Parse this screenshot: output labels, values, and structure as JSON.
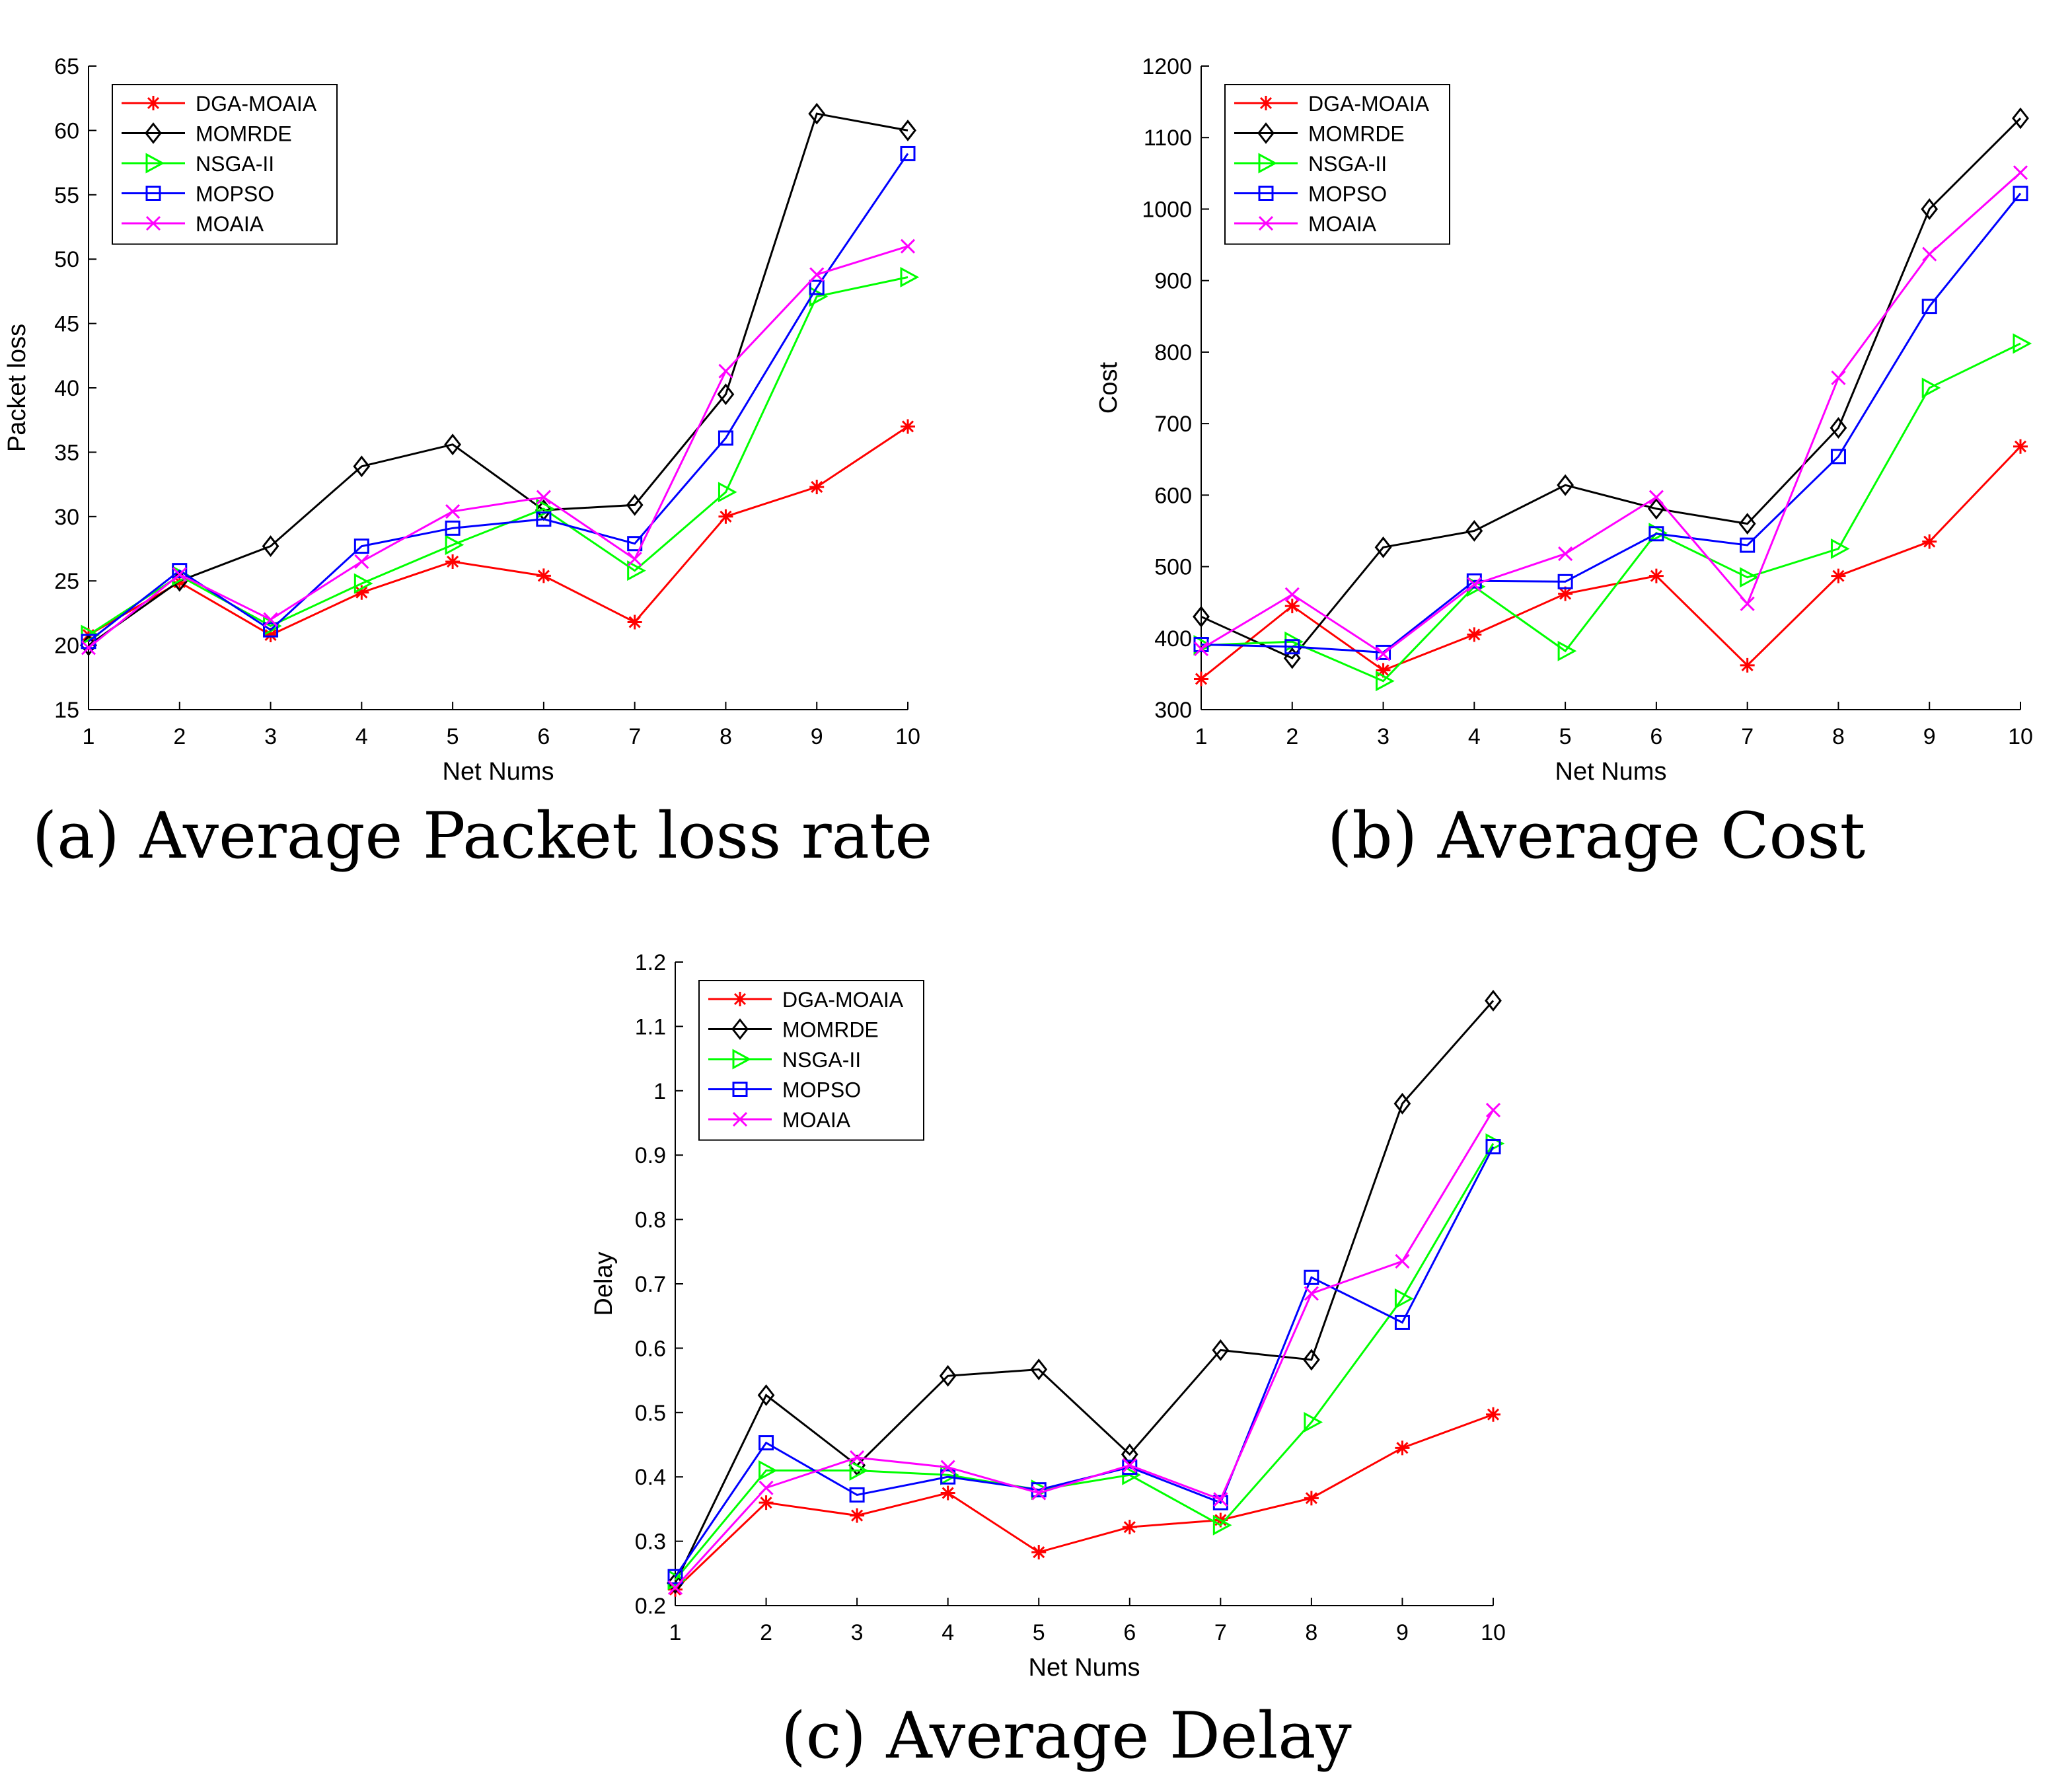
{
  "series_style": [
    {
      "name": "DGA-MOAIA",
      "color": "#ff0000",
      "marker": "asterisk"
    },
    {
      "name": "MOMRDE",
      "color": "#000000",
      "marker": "diamond"
    },
    {
      "name": "NSGA-II",
      "color": "#00ff00",
      "marker": "triangle-right"
    },
    {
      "name": "MOPSO",
      "color": "#0000ff",
      "marker": "square"
    },
    {
      "name": "MOAIA",
      "color": "#ff00ff",
      "marker": "x-cross"
    }
  ],
  "chart_data": [
    {
      "type": "line",
      "caption": "(a) Average Packet loss rate",
      "xlabel": "Net Nums",
      "ylabel": "Packet loss",
      "x": [
        1,
        2,
        3,
        4,
        5,
        6,
        7,
        8,
        9,
        10
      ],
      "xlim": [
        1,
        10
      ],
      "ylim": [
        15,
        65
      ],
      "xticks": [
        "1",
        "2",
        "3",
        "4",
        "5",
        "6",
        "7",
        "8",
        "9",
        "10"
      ],
      "yticks": [
        "15",
        "20",
        "25",
        "30",
        "35",
        "40",
        "45",
        "50",
        "55",
        "60",
        "65"
      ],
      "legend_position": "top-left",
      "series": [
        {
          "name": "DGA-MOAIA",
          "values": [
            20.8,
            24.9,
            20.8,
            24.1,
            26.5,
            25.4,
            21.8,
            30.0,
            32.3,
            37.0
          ]
        },
        {
          "name": "MOMRDE",
          "values": [
            20.0,
            25.0,
            27.7,
            33.9,
            35.6,
            30.5,
            30.9,
            39.5,
            61.3,
            60.0
          ]
        },
        {
          "name": "NSGA-II",
          "values": [
            20.8,
            25.4,
            21.5,
            24.8,
            27.8,
            30.6,
            25.8,
            31.9,
            47.1,
            48.6
          ]
        },
        {
          "name": "MOPSO",
          "values": [
            20.3,
            25.8,
            21.2,
            27.7,
            29.1,
            29.8,
            27.9,
            36.1,
            47.8,
            58.2
          ]
        },
        {
          "name": "MOAIA",
          "values": [
            19.8,
            25.5,
            22.0,
            26.5,
            30.4,
            31.5,
            26.7,
            41.3,
            48.8,
            51.0
          ]
        }
      ]
    },
    {
      "type": "line",
      "caption": "(b) Average Cost",
      "xlabel": "Net Nums",
      "ylabel": "Cost",
      "x": [
        1,
        2,
        3,
        4,
        5,
        6,
        7,
        8,
        9,
        10
      ],
      "xlim": [
        1,
        10
      ],
      "ylim": [
        300,
        1200
      ],
      "xticks": [
        "1",
        "2",
        "3",
        "4",
        "5",
        "6",
        "7",
        "8",
        "9",
        "10"
      ],
      "yticks": [
        "300",
        "400",
        "500",
        "600",
        "700",
        "800",
        "900",
        "1000",
        "1100",
        "1200"
      ],
      "legend_position": "top-left",
      "series": [
        {
          "name": "DGA-MOAIA",
          "values": [
            343,
            445,
            355,
            405,
            462,
            487,
            362,
            487,
            535,
            668
          ]
        },
        {
          "name": "MOMRDE",
          "values": [
            430,
            372,
            527,
            550,
            614,
            581,
            560,
            694,
            1000,
            1127
          ]
        },
        {
          "name": "NSGA-II",
          "values": [
            390,
            395,
            340,
            472,
            382,
            547,
            485,
            525,
            750,
            812
          ]
        },
        {
          "name": "MOPSO",
          "values": [
            391,
            388,
            380,
            480,
            479,
            546,
            530,
            654,
            864,
            1022
          ]
        },
        {
          "name": "MOAIA",
          "values": [
            385,
            461,
            378,
            475,
            518,
            597,
            448,
            764,
            937,
            1051
          ]
        }
      ]
    },
    {
      "type": "line",
      "caption": "(c) Average Delay",
      "xlabel": "Net Nums",
      "ylabel": "Delay",
      "x": [
        1,
        2,
        3,
        4,
        5,
        6,
        7,
        8,
        9,
        10
      ],
      "xlim": [
        1,
        10
      ],
      "ylim": [
        0.2,
        1.2
      ],
      "xticks": [
        "1",
        "2",
        "3",
        "4",
        "5",
        "6",
        "7",
        "8",
        "9",
        "10"
      ],
      "yticks": [
        "0.2",
        "0.3",
        "0.4",
        "0.5",
        "0.6",
        "0.7",
        "0.8",
        "0.9",
        "1",
        "1.1",
        "1.2"
      ],
      "legend_position": "top-left",
      "series": [
        {
          "name": "DGA-MOAIA",
          "values": [
            0.225,
            0.36,
            0.34,
            0.375,
            0.283,
            0.322,
            0.333,
            0.367,
            0.445,
            0.497
          ]
        },
        {
          "name": "MOMRDE",
          "values": [
            0.235,
            0.527,
            0.418,
            0.557,
            0.567,
            0.435,
            0.597,
            0.582,
            0.98,
            1.14
          ]
        },
        {
          "name": "NSGA-II",
          "values": [
            0.24,
            0.41,
            0.41,
            0.403,
            0.38,
            0.403,
            0.325,
            0.485,
            0.677,
            0.918
          ]
        },
        {
          "name": "MOPSO",
          "values": [
            0.245,
            0.453,
            0.372,
            0.4,
            0.38,
            0.415,
            0.36,
            0.71,
            0.64,
            0.913
          ]
        },
        {
          "name": "MOAIA",
          "values": [
            0.228,
            0.383,
            0.43,
            0.415,
            0.375,
            0.418,
            0.365,
            0.685,
            0.735,
            0.97
          ]
        }
      ]
    }
  ]
}
